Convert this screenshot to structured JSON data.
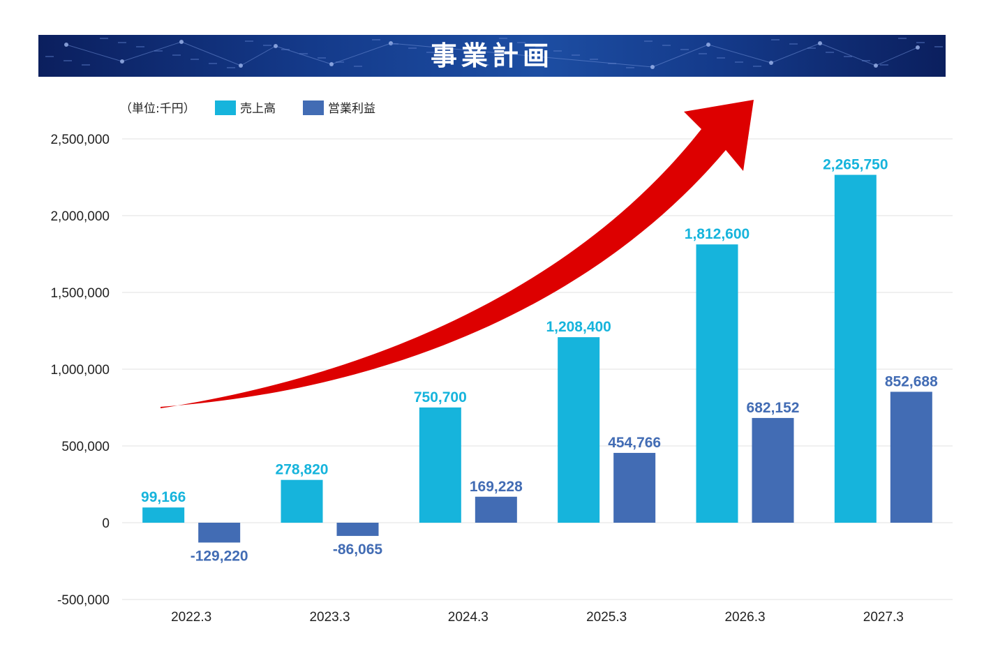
{
  "banner": {
    "title": "事業計画"
  },
  "colors": {
    "sales": "#16b4dc",
    "profit": "#426cb4",
    "arrow": "#dd0000",
    "grid": "#e0e0e0"
  },
  "chart_data": {
    "type": "bar",
    "unit_label": "（単位:千円）",
    "categories": [
      "2022.3",
      "2023.3",
      "2024.3",
      "2025.3",
      "2026.3",
      "2027.3"
    ],
    "series": [
      {
        "name": "売上高",
        "values": [
          99166,
          278820,
          750700,
          1208400,
          1812600,
          2265750
        ],
        "labels": [
          "99,166",
          "278,820",
          "750,700",
          "1,208,400",
          "1,812,600",
          "2,265,750"
        ]
      },
      {
        "name": "営業利益",
        "values": [
          -129220,
          -86065,
          169228,
          454766,
          682152,
          852688
        ],
        "labels": [
          "-129,220",
          "-86,065",
          "169,228",
          "454,766",
          "682,152",
          "852,688"
        ]
      }
    ],
    "ylim": [
      -500000,
      2500000
    ],
    "yticks": [
      {
        "value": 2500000,
        "label": "2,500,000"
      },
      {
        "value": 2000000,
        "label": "2,000,000"
      },
      {
        "value": 1500000,
        "label": "1,500,000"
      },
      {
        "value": 1000000,
        "label": "1,000,000"
      },
      {
        "value": 500000,
        "label": "500,000"
      },
      {
        "value": 0,
        "label": "0"
      },
      {
        "value": -500000,
        "label": "-500,000"
      }
    ],
    "grid": true,
    "legend": "top-left"
  }
}
